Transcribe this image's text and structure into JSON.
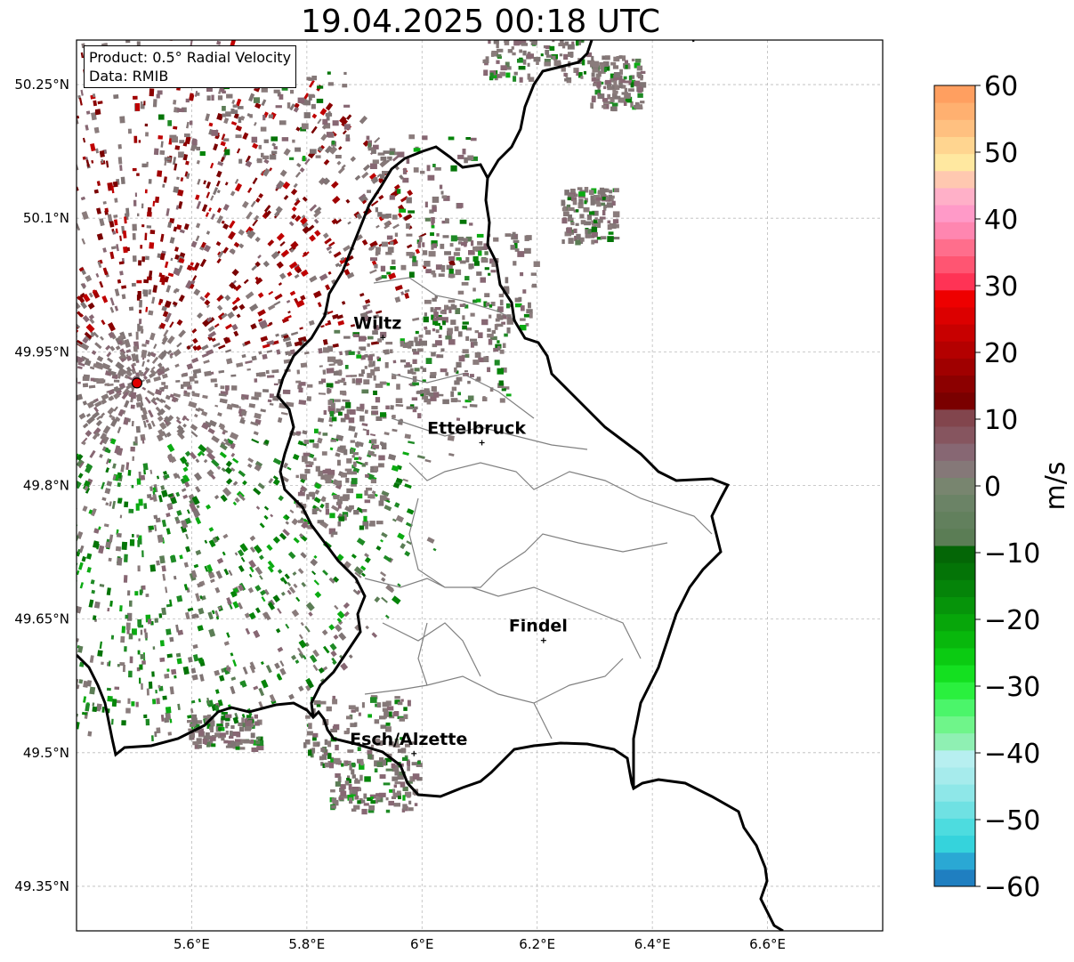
{
  "title": "19.04.2025 00:18 UTC",
  "info": {
    "product": "Product: 0.5° Radial Velocity",
    "data": "Data: RMIB"
  },
  "axes": {
    "lon_ticks": [
      "5.6°E",
      "5.8°E",
      "6°E",
      "6.2°E",
      "6.4°E",
      "6.6°E"
    ],
    "lat_ticks": [
      "50.25°N",
      "50.1°N",
      "49.95°N",
      "49.8°N",
      "49.65°N",
      "49.5°N",
      "49.35°N"
    ],
    "lon_range": [
      5.4,
      6.8
    ],
    "lat_range": [
      49.3,
      50.3
    ],
    "grid": true
  },
  "radar_site": {
    "lon": 5.505,
    "lat": 49.915,
    "color": "#e00000"
  },
  "cities": [
    {
      "name": "Wiltz",
      "lon": 5.932,
      "lat": 49.966
    },
    {
      "name": "Ettelbruck",
      "lon": 6.104,
      "lat": 49.848
    },
    {
      "name": "Findel",
      "lon": 6.211,
      "lat": 49.626
    },
    {
      "name": "Esch/Alzette",
      "lon": 5.986,
      "lat": 49.499
    }
  ],
  "colorbar": {
    "label": "m/s",
    "min": -60,
    "max": 60,
    "ticks": [
      "60",
      "50",
      "40",
      "30",
      "20",
      "10",
      "0",
      "−10",
      "−20",
      "−30",
      "−40",
      "−50",
      "−60"
    ],
    "colors": [
      "#1f7fc1",
      "#2aa8d4",
      "#35d3dc",
      "#4ddcdf",
      "#6fe1e3",
      "#8ee7e8",
      "#a6ebec",
      "#b7eff0",
      "#8ff0b3",
      "#6ff58a",
      "#4bf56a",
      "#2af03e",
      "#14e020",
      "#0bcb12",
      "#08b80c",
      "#07a60a",
      "#06940a",
      "#058409",
      "#047407",
      "#046606",
      "#5b7d55",
      "#62805d",
      "#6b8366",
      "#78856f",
      "#857878",
      "#876773",
      "#86555f",
      "#82454d",
      "#7a0000",
      "#8c0000",
      "#a00000",
      "#b40000",
      "#c80000",
      "#dc0000",
      "#ee0000",
      "#ff3355",
      "#ff5572",
      "#ff6e8c",
      "#ff86b0",
      "#ff9ac8",
      "#ffb0c8",
      "#ffc8b0",
      "#ffe8a0",
      "#ffd590",
      "#ffc080",
      "#ffb070",
      "#ff9f60"
    ]
  },
  "velocity_field": {
    "description_colors": {
      "away": "#8b0000",
      "zero": "#857878",
      "toward": "#058409"
    }
  }
}
